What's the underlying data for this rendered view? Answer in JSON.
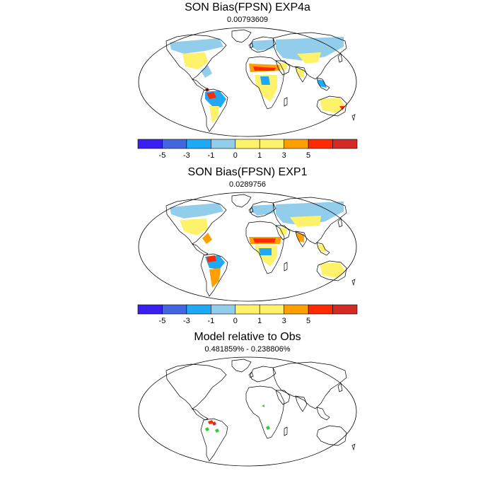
{
  "panels": [
    {
      "title": "SON Bias(FPSN) EXP4a",
      "subtitle": "0.00793609",
      "variant": "exp4a",
      "colorbar": true
    },
    {
      "title": "SON Bias(FPSN) EXP1",
      "subtitle": "0.0289756",
      "variant": "exp1",
      "colorbar": true
    },
    {
      "title": "Model relative to Obs",
      "subtitle": "0.481859% - 0.238806%",
      "variant": "relative",
      "colorbar": false
    }
  ],
  "colorbar": {
    "colors": [
      "#3b1ef0",
      "#4266e0",
      "#1ea8f5",
      "#92cdeb",
      "#fff26b",
      "#fff26b",
      "#ff9f00",
      "#ff2a00",
      "#d42a26"
    ],
    "tick_labels": [
      "-5",
      "-3",
      "-1",
      "0",
      "1",
      "3",
      "5"
    ]
  },
  "map_colors": {
    "outline": "#000000",
    "land": "#ffffff",
    "light_blue": "#92cdeb",
    "mid_blue": "#1ea8f5",
    "dark_blue": "#4266e0",
    "yellow": "#fff26b",
    "orange": "#ff9f00",
    "red": "#ff2a00",
    "dark_red": "#d42a26",
    "green": "#33cc33"
  }
}
